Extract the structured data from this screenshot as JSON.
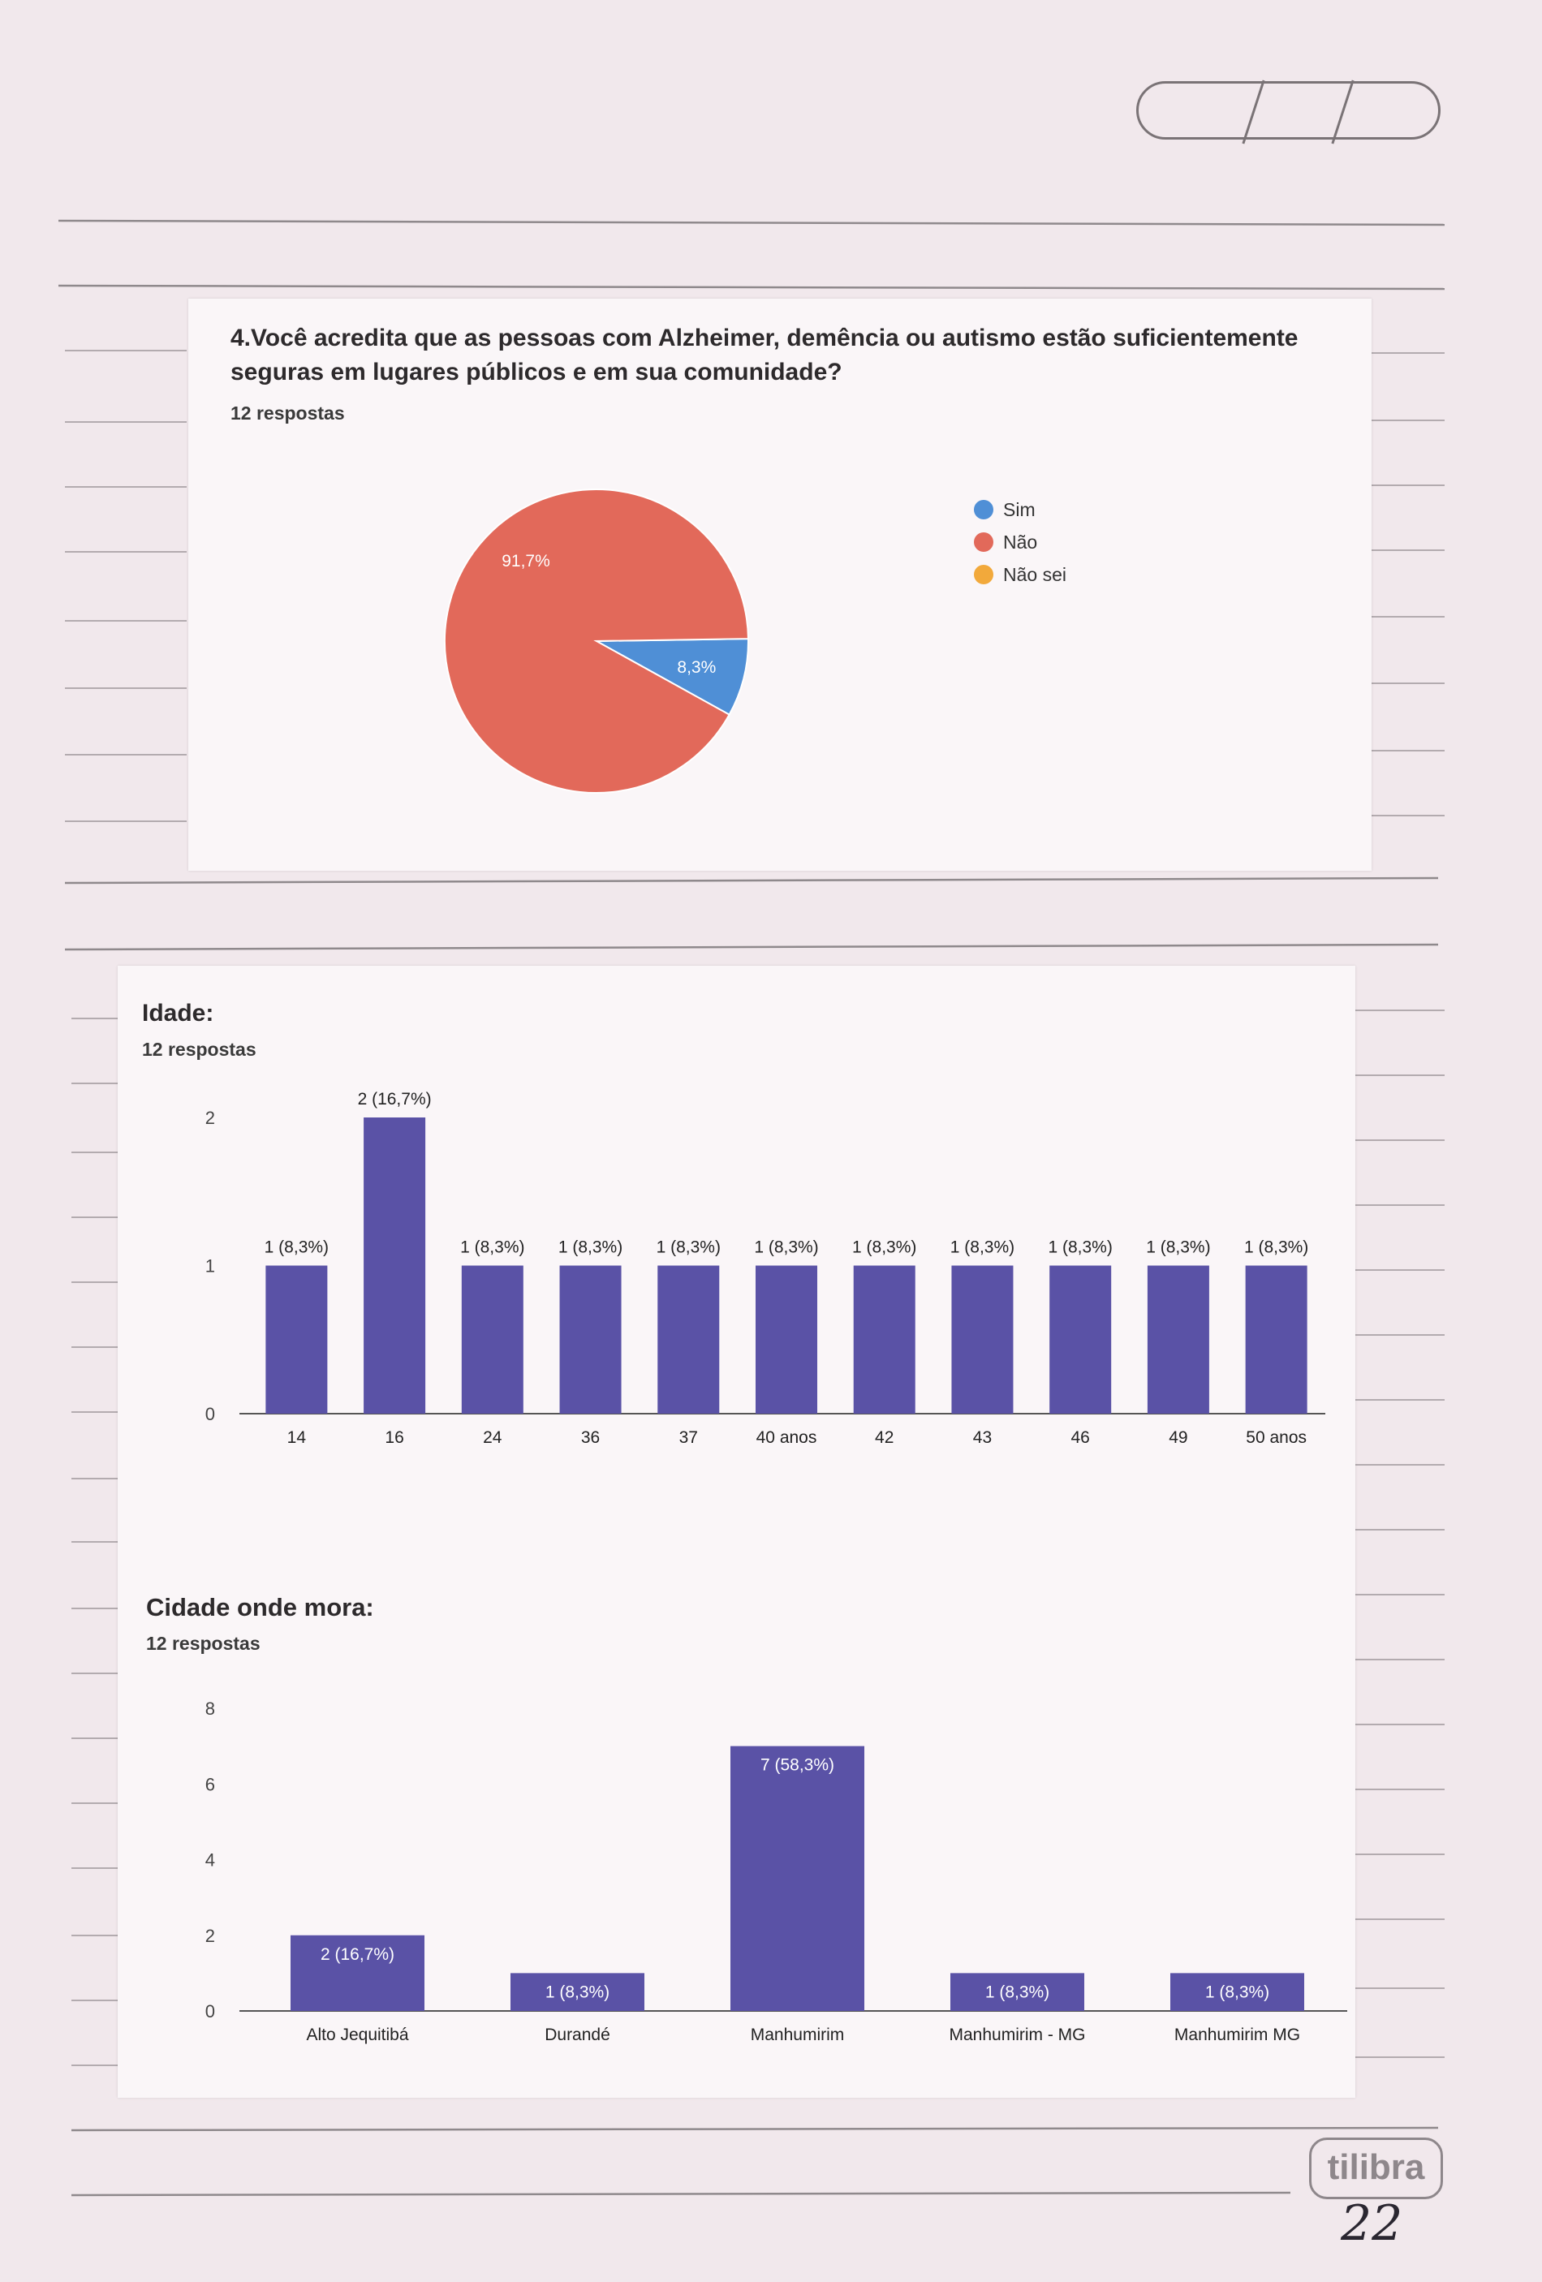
{
  "page": {
    "brand": "tilibra",
    "page_number": "22"
  },
  "charts": {
    "q4": {
      "title_line1": "4.Você acredita que as pessoas com Alzheimer, demência ou autismo estão suficientemente",
      "title_line2": "seguras em lugares públicos e em sua comunidade?",
      "responses": "12 respostas"
    },
    "idade": {
      "title": "Idade:",
      "responses": "12 respostas"
    },
    "cidade": {
      "title": "Cidade onde mora:",
      "responses": "12 respostas"
    }
  },
  "chart_data": [
    {
      "type": "pie",
      "title": "4.Você acredita que as pessoas com Alzheimer, demência ou autismo estão suficientemente seguras em lugares públicos e em sua comunidade?",
      "subtitle": "12 respostas",
      "categories": [
        "Sim",
        "Não",
        "Não sei"
      ],
      "values": [
        8.3,
        91.7,
        0
      ],
      "labels": [
        "8,3%",
        "91,7%",
        ""
      ],
      "colors": [
        "#4f8fd6",
        "#e2695a",
        "#f2a93b"
      ],
      "legend": "right"
    },
    {
      "type": "bar",
      "title": "Idade:",
      "subtitle": "12 respostas",
      "categories": [
        "14",
        "16",
        "24",
        "36",
        "37",
        "40 anos",
        "42",
        "43",
        "46",
        "49",
        "50 anos"
      ],
      "values": [
        1,
        2,
        1,
        1,
        1,
        1,
        1,
        1,
        1,
        1,
        1
      ],
      "labels": [
        "1 (8,3%)",
        "2 (16,7%)",
        "1 (8,3%)",
        "1 (8,3%)",
        "1 (8,3%)",
        "1 (8,3%)",
        "1 (8,3%)",
        "1 (8,3%)",
        "1 (8,3%)",
        "1 (8,3%)",
        "1 (8,3%)"
      ],
      "yticks": [
        0,
        1,
        2
      ],
      "ylim": [
        0,
        2
      ],
      "color": "#5a52a6"
    },
    {
      "type": "bar",
      "title": "Cidade onde mora:",
      "subtitle": "12 respostas",
      "categories": [
        "Alto Jequitibá",
        "Durandé",
        "Manhumirim",
        "Manhumirim - MG",
        "Manhumirim MG"
      ],
      "values": [
        2,
        1,
        7,
        1,
        1
      ],
      "labels": [
        "2 (16,7%)",
        "1 (8,3%)",
        "7 (58,3%)",
        "1 (8,3%)",
        "1 (8,3%)"
      ],
      "yticks": [
        0,
        2,
        4,
        6,
        8
      ],
      "ylim": [
        0,
        8
      ],
      "color": "#5a52a6"
    }
  ]
}
